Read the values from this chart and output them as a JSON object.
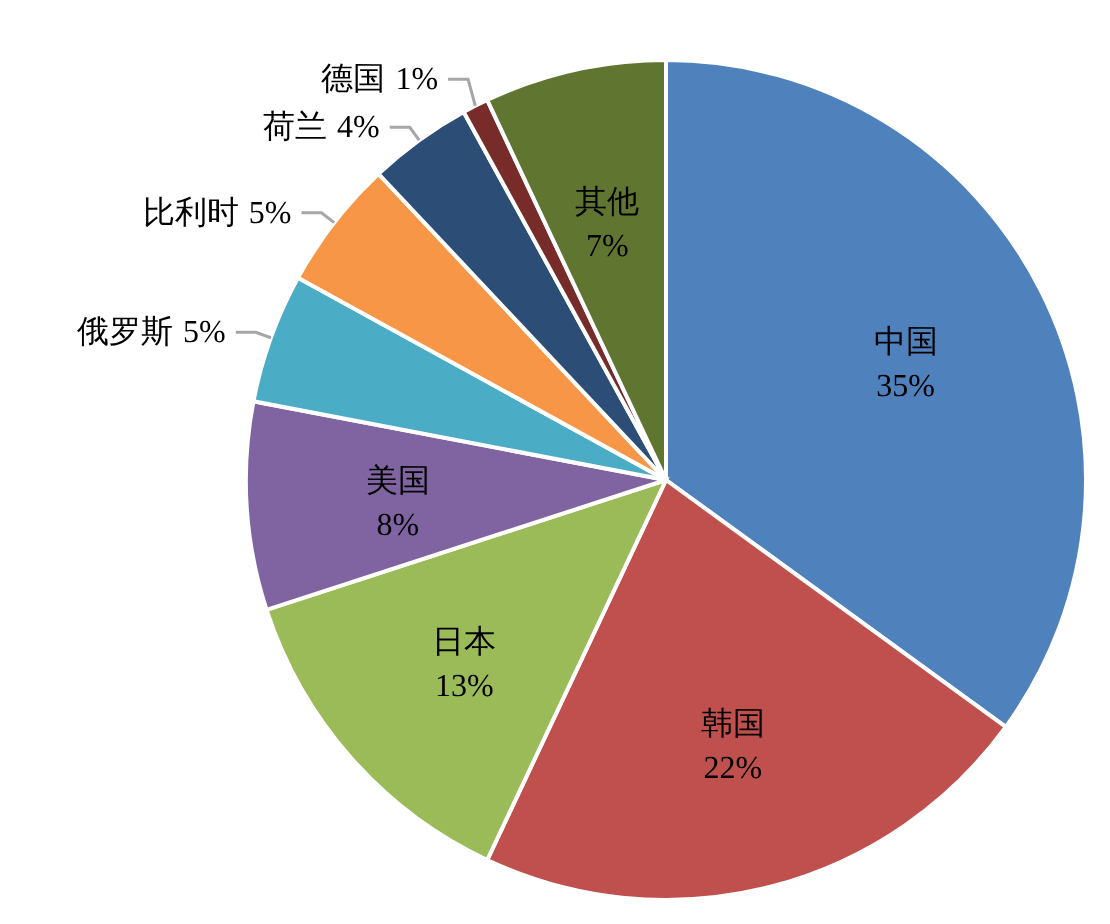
{
  "chart_data": {
    "type": "pie",
    "categories": [
      "中国",
      "韩国",
      "日本",
      "美国",
      "俄罗斯",
      "比利时",
      "荷兰",
      "德国",
      "其他"
    ],
    "values": [
      35,
      22,
      13,
      8,
      5,
      5,
      4,
      1,
      7
    ],
    "colors": [
      "#4f81bd",
      "#c0504d",
      "#9bbb59",
      "#8064a2",
      "#4bacc6",
      "#f79646",
      "#2c4d75",
      "#772c2a",
      "#5f7530"
    ],
    "value_labels": [
      "35%",
      "22%",
      "13%",
      "8%",
      "5%",
      "5%",
      "4%",
      "1%",
      "7%"
    ]
  }
}
